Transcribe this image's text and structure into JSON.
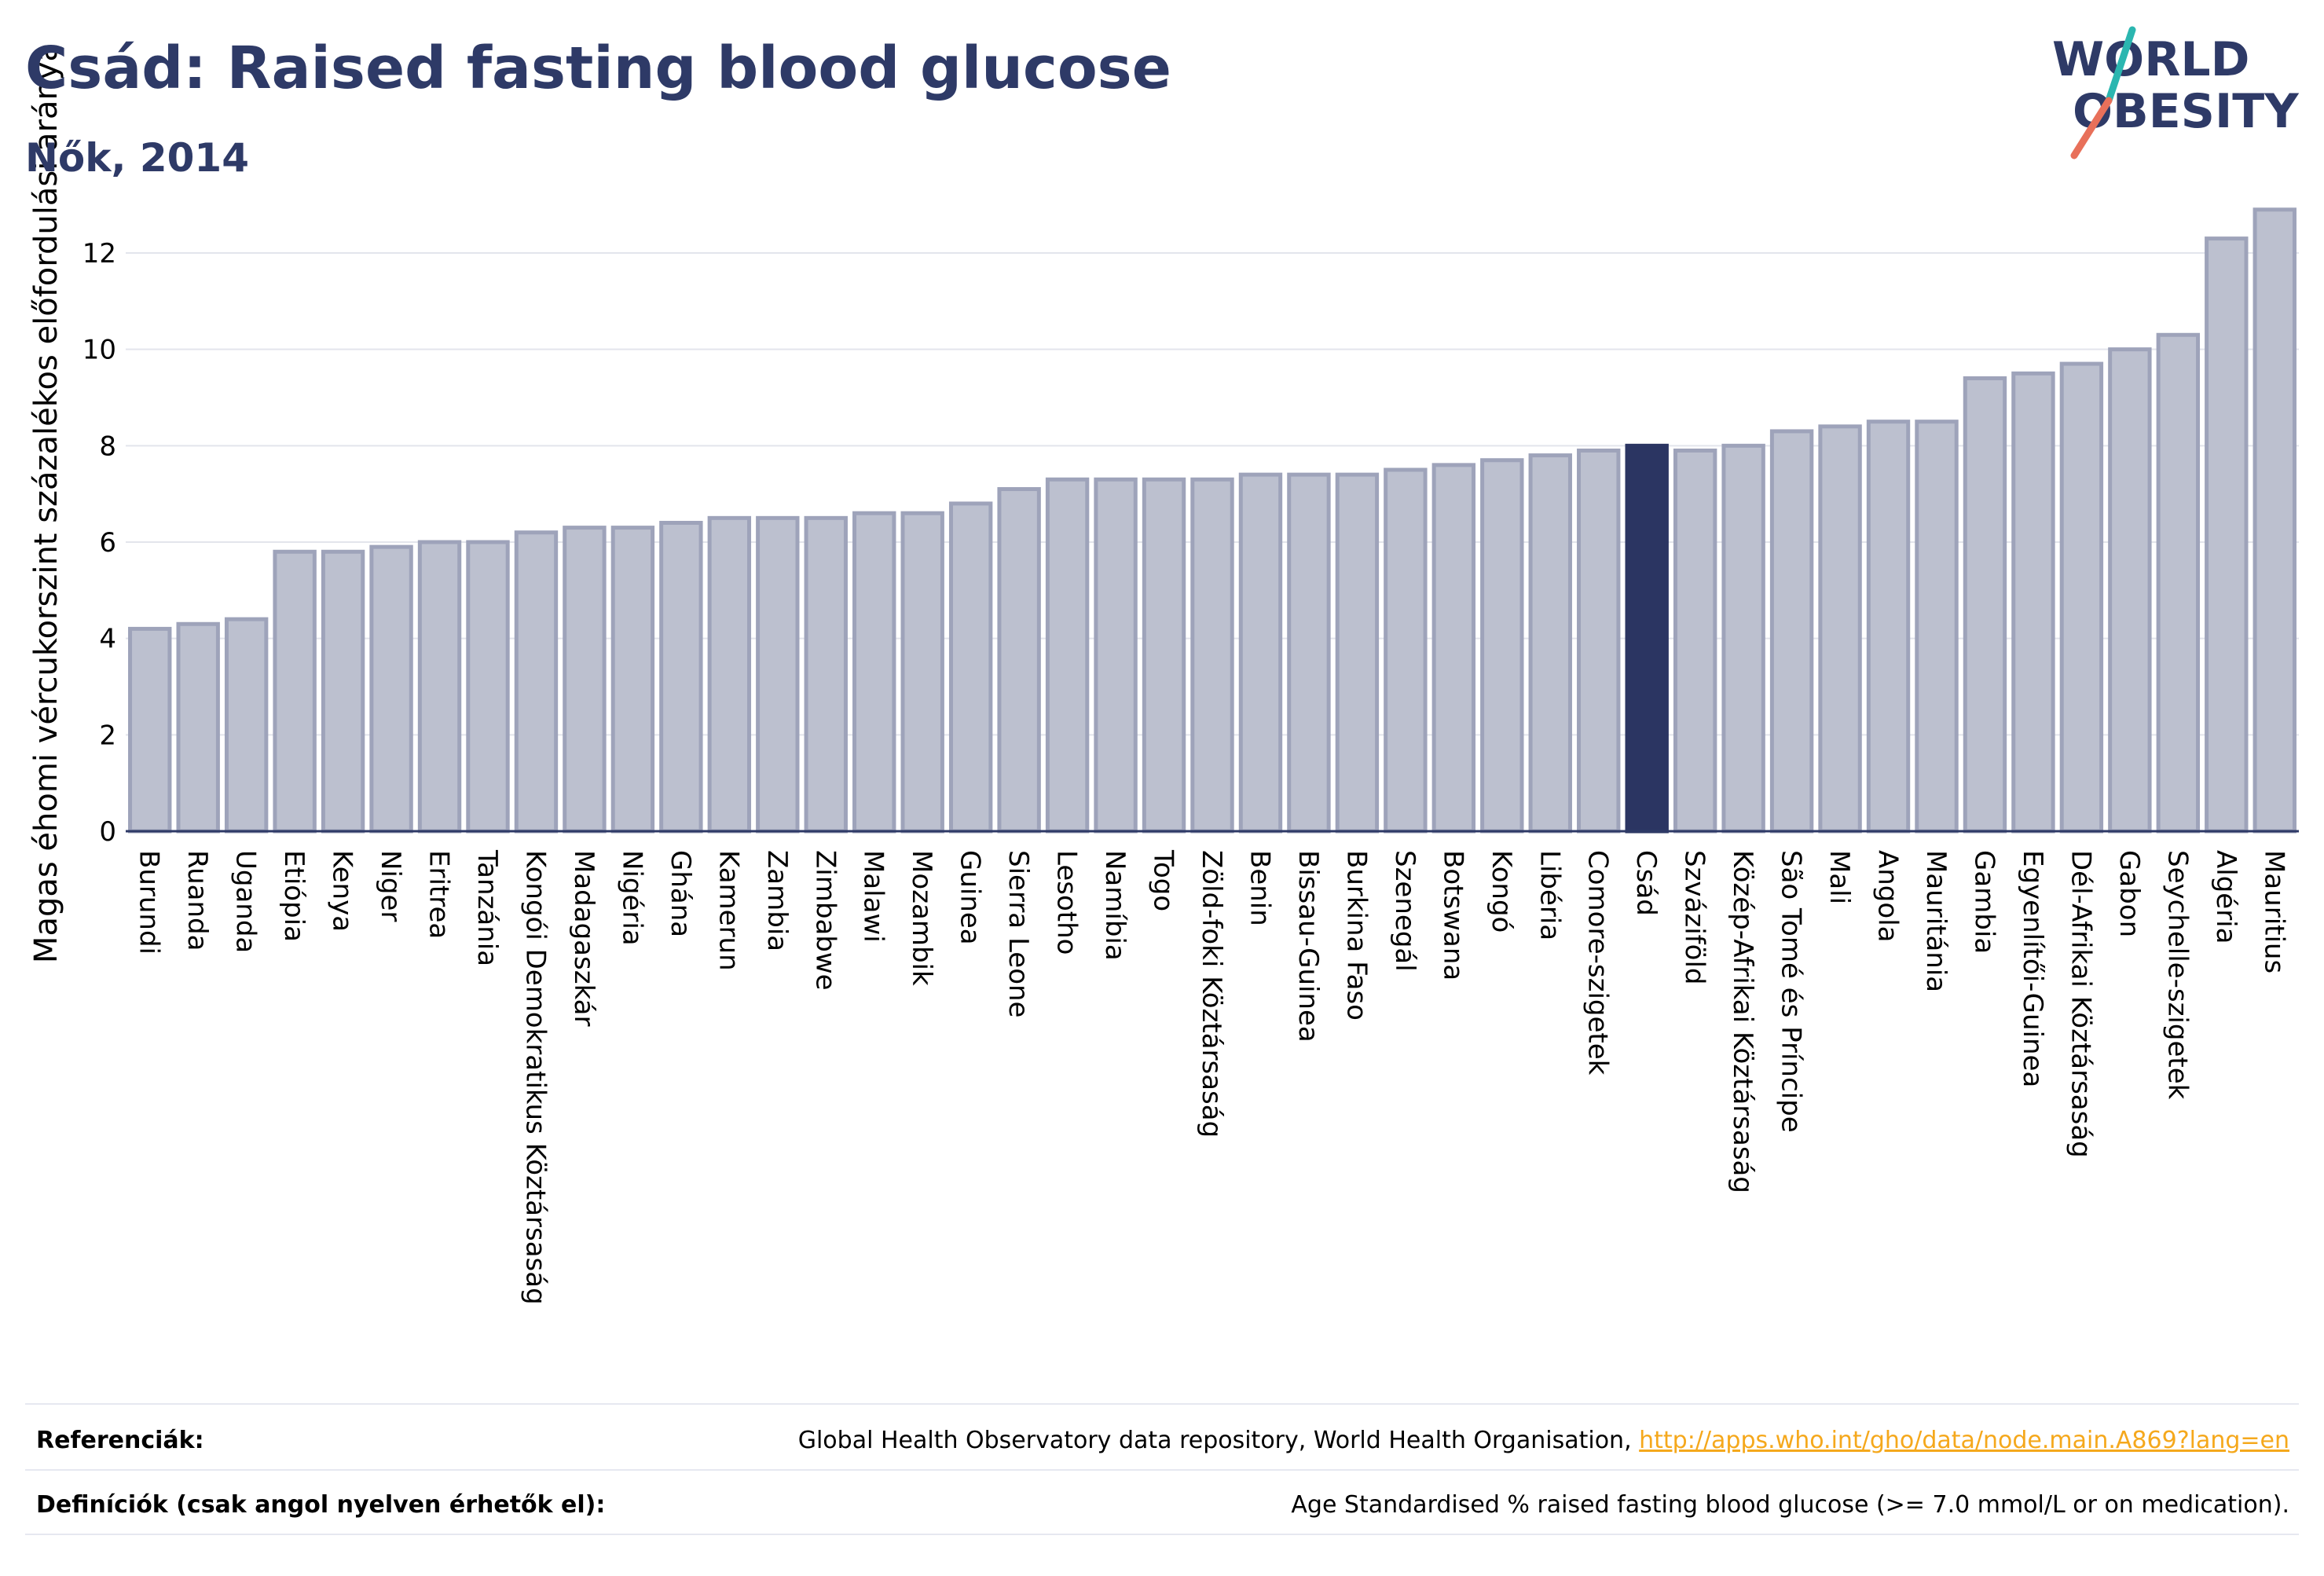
{
  "title": "Csád: Raised fasting blood glucose",
  "subtitle": "Nők, 2014",
  "logo": {
    "line1": "WORLD",
    "line2": "OBESITY"
  },
  "colors": {
    "title": "#2e3a67",
    "highlight": "#2b3562",
    "bar_fill": "#bcc0cf",
    "bar_stroke": "#9ea3ba",
    "link": "#f5a81c"
  },
  "chart_data": {
    "type": "bar",
    "ylabel": "Magas éhomi vércukorszint százalékos előfordulási aránya",
    "ylim": [
      0,
      13.5
    ],
    "yticks": [
      0,
      2,
      4,
      6,
      8,
      10,
      12
    ],
    "grid": true,
    "highlight": "Csád",
    "categories": [
      "Burundi",
      "Ruanda",
      "Uganda",
      "Etiópia",
      "Kenya",
      "Niger",
      "Eritrea",
      "Tanzánia",
      "Kongói Demokratikus Köztársaság",
      "Madagaszkár",
      "Nigéria",
      "Ghána",
      "Kamerun",
      "Zambia",
      "Zimbabwe",
      "Malawi",
      "Mozambik",
      "Guinea",
      "Sierra Leone",
      "Lesotho",
      "Namíbia",
      "Togo",
      "Zöld-foki Köztársaság",
      "Benin",
      "Bissau-Guinea",
      "Burkina Faso",
      "Szenegál",
      "Botswana",
      "Kongó",
      "Libéria",
      "Comore-szigetek",
      "Csád",
      "Szváziföld",
      "Közép-Afrikai Köztársaság",
      "São Tomé és Príncipe",
      "Mali",
      "Angola",
      "Mauritánia",
      "Gambia",
      "Egyenlítői-Guinea",
      "Dél-Afrikai Köztársaság",
      "Gabon",
      "Seychelle-szigetek",
      "Algéria",
      "Mauritius"
    ],
    "values": [
      4.2,
      4.3,
      4.4,
      5.8,
      5.8,
      5.9,
      6.0,
      6.0,
      6.2,
      6.3,
      6.3,
      6.4,
      6.5,
      6.5,
      6.5,
      6.6,
      6.6,
      6.8,
      7.1,
      7.3,
      7.3,
      7.3,
      7.3,
      7.4,
      7.4,
      7.4,
      7.5,
      7.6,
      7.7,
      7.8,
      7.9,
      8.0,
      7.9,
      8.0,
      8.3,
      8.4,
      8.5,
      8.5,
      9.4,
      9.5,
      9.7,
      10.0,
      10.3,
      12.3,
      12.9
    ]
  },
  "footer": {
    "references_label": "Referenciák:",
    "references_text": "Global Health Observatory data repository, World Health Organisation, ",
    "references_link": "http://apps.who.int/gho/data/node.main.A869?lang=en",
    "definitions_label": "Definíciók (csak angol nyelven érhetők el):",
    "definitions_text": "Age Standardised % raised fasting blood glucose (>= 7.0 mmol/L or on medication)."
  }
}
